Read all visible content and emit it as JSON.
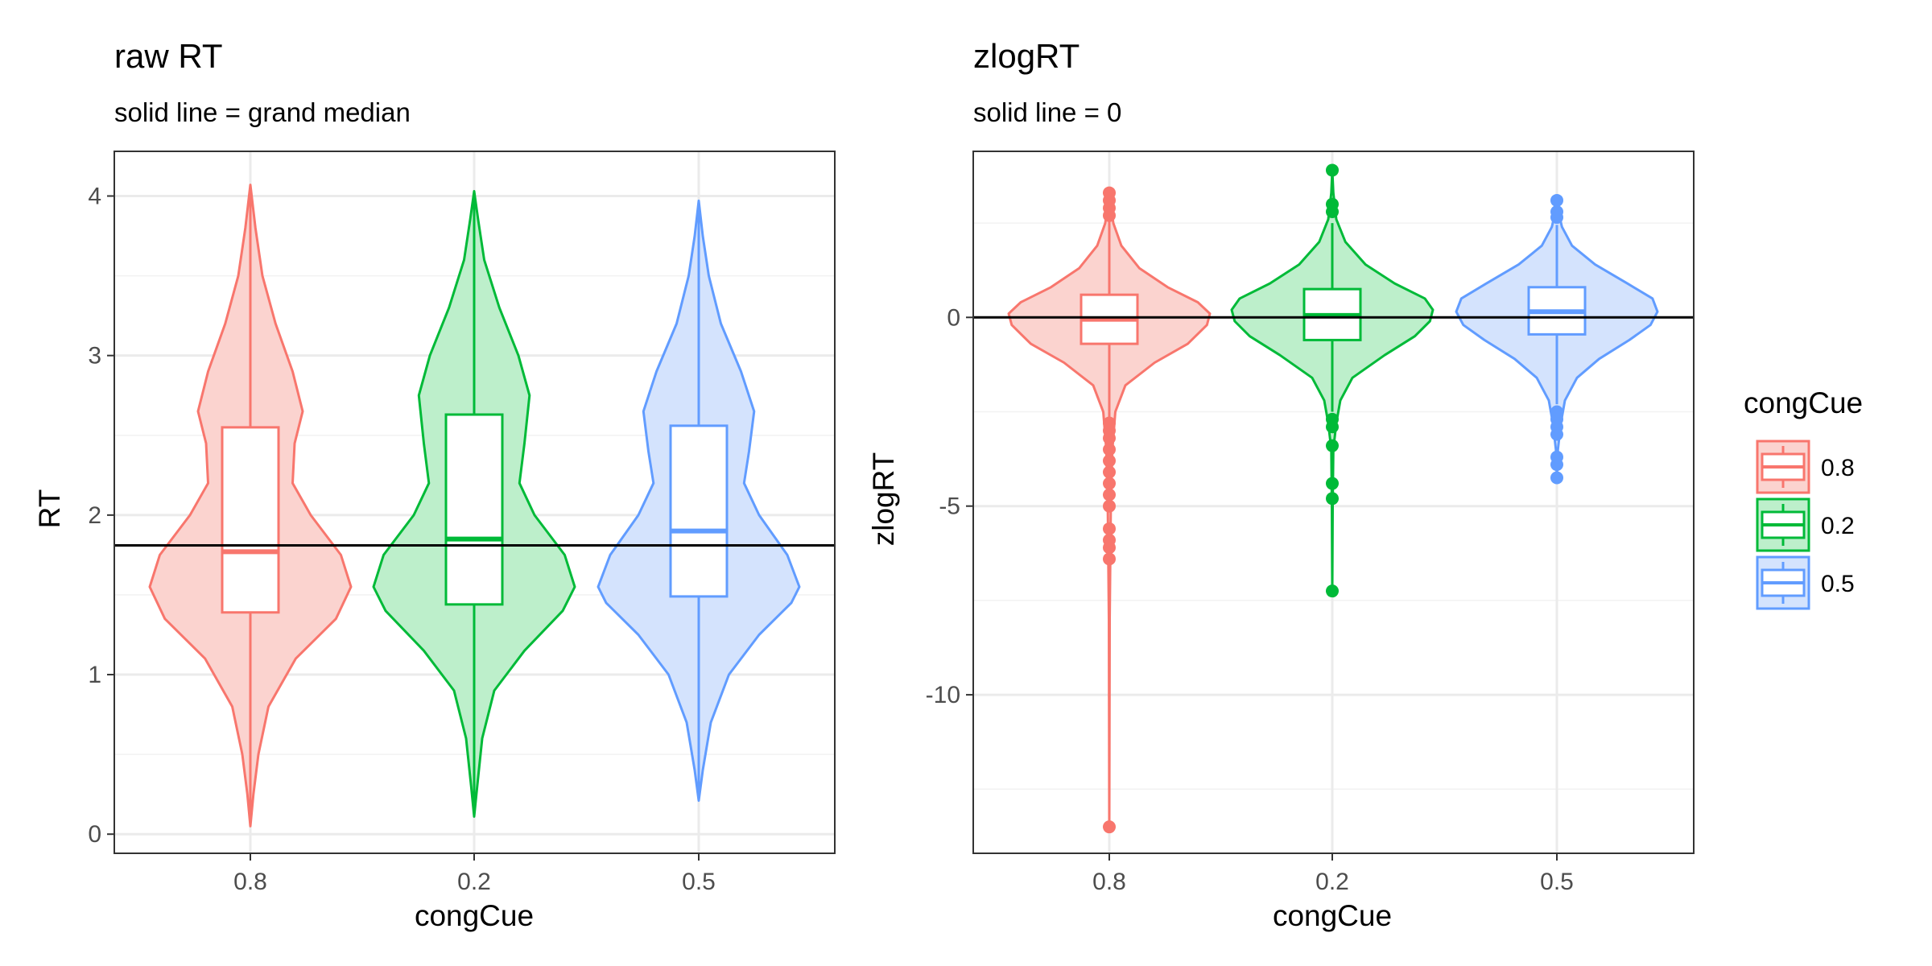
{
  "chart_data": [
    {
      "type": "violin",
      "title": "raw RT",
      "subtitle": "solid line = grand median",
      "xlabel": "congCue",
      "ylabel": "RT",
      "categories": [
        "0.8",
        "0.2",
        "0.5"
      ],
      "ylim": [
        -0.12,
        4.28
      ],
      "yticks": [
        0,
        1,
        2,
        3,
        4
      ],
      "ytick_labels": [
        "0",
        "1",
        "2",
        "3",
        "4"
      ],
      "grid": true,
      "reference_line": 1.81,
      "groups": [
        {
          "name": "0.8",
          "color": "#F8766D",
          "fill": "#FBD3CF",
          "min": 0.05,
          "max": 4.07,
          "q1": 1.39,
          "median": 1.77,
          "q3": 2.55,
          "whisker_low": 0.05,
          "whisker_high": 4.07,
          "outliers": [],
          "density": [
            [
              0.05,
              0.0
            ],
            [
              0.25,
              0.03
            ],
            [
              0.5,
              0.08
            ],
            [
              0.8,
              0.18
            ],
            [
              1.1,
              0.45
            ],
            [
              1.35,
              0.85
            ],
            [
              1.55,
              1.0
            ],
            [
              1.75,
              0.9
            ],
            [
              2.0,
              0.6
            ],
            [
              2.2,
              0.42
            ],
            [
              2.45,
              0.44
            ],
            [
              2.65,
              0.52
            ],
            [
              2.9,
              0.42
            ],
            [
              3.2,
              0.25
            ],
            [
              3.5,
              0.12
            ],
            [
              3.8,
              0.05
            ],
            [
              4.07,
              0.0
            ]
          ]
        },
        {
          "name": "0.2",
          "color": "#00BA38",
          "fill": "#BDEFCB",
          "min": 0.11,
          "max": 4.03,
          "q1": 1.44,
          "median": 1.85,
          "q3": 2.63,
          "whisker_low": 0.11,
          "whisker_high": 4.03,
          "outliers": [],
          "density": [
            [
              0.11,
              0.0
            ],
            [
              0.3,
              0.03
            ],
            [
              0.6,
              0.08
            ],
            [
              0.9,
              0.2
            ],
            [
              1.15,
              0.5
            ],
            [
              1.4,
              0.88
            ],
            [
              1.55,
              1.0
            ],
            [
              1.75,
              0.9
            ],
            [
              2.0,
              0.6
            ],
            [
              2.2,
              0.45
            ],
            [
              2.45,
              0.5
            ],
            [
              2.75,
              0.55
            ],
            [
              3.0,
              0.44
            ],
            [
              3.3,
              0.25
            ],
            [
              3.6,
              0.1
            ],
            [
              3.85,
              0.04
            ],
            [
              4.03,
              0.0
            ]
          ]
        },
        {
          "name": "0.5",
          "color": "#619CFF",
          "fill": "#D4E3FD",
          "min": 0.21,
          "max": 3.97,
          "q1": 1.49,
          "median": 1.9,
          "q3": 2.56,
          "whisker_low": 0.21,
          "whisker_high": 3.97,
          "outliers": [],
          "density": [
            [
              0.21,
              0.0
            ],
            [
              0.4,
              0.04
            ],
            [
              0.7,
              0.12
            ],
            [
              1.0,
              0.3
            ],
            [
              1.25,
              0.6
            ],
            [
              1.45,
              0.92
            ],
            [
              1.55,
              1.0
            ],
            [
              1.75,
              0.88
            ],
            [
              2.0,
              0.6
            ],
            [
              2.2,
              0.45
            ],
            [
              2.4,
              0.5
            ],
            [
              2.65,
              0.55
            ],
            [
              2.9,
              0.42
            ],
            [
              3.2,
              0.22
            ],
            [
              3.5,
              0.1
            ],
            [
              3.75,
              0.04
            ],
            [
              3.97,
              0.0
            ]
          ]
        }
      ]
    },
    {
      "type": "violin",
      "title": "zlogRT",
      "subtitle": "solid line = 0",
      "xlabel": "congCue",
      "ylabel": "zlogRT",
      "categories": [
        "0.8",
        "0.2",
        "0.5"
      ],
      "ylim": [
        -14.2,
        4.4
      ],
      "yticks": [
        -10,
        -5,
        0
      ],
      "ytick_labels": [
        "-10",
        "-5",
        "0"
      ],
      "grid": true,
      "reference_line": 0,
      "groups": [
        {
          "name": "0.8",
          "color": "#F8766D",
          "fill": "#FBD3CF",
          "min": -13.5,
          "max": 3.3,
          "q1": -0.7,
          "median": -0.05,
          "q3": 0.6,
          "whisker_low": -2.65,
          "whisker_high": 2.55,
          "outliers": [
            -13.5,
            -6.4,
            -6.1,
            -5.9,
            -5.6,
            -5.0,
            -4.7,
            -4.4,
            -4.1,
            -3.8,
            -3.5,
            -3.2,
            -3.0,
            -2.8,
            2.7,
            2.9,
            3.1,
            3.3
          ],
          "density": [
            [
              -13.5,
              0.0
            ],
            [
              -8.0,
              0.004
            ],
            [
              -5.0,
              0.015
            ],
            [
              -3.5,
              0.03
            ],
            [
              -2.5,
              0.06
            ],
            [
              -1.8,
              0.16
            ],
            [
              -1.2,
              0.45
            ],
            [
              -0.7,
              0.78
            ],
            [
              -0.2,
              0.97
            ],
            [
              0.1,
              1.0
            ],
            [
              0.4,
              0.88
            ],
            [
              0.8,
              0.58
            ],
            [
              1.3,
              0.3
            ],
            [
              1.9,
              0.12
            ],
            [
              2.5,
              0.04
            ],
            [
              3.0,
              0.015
            ],
            [
              3.3,
              0.0
            ]
          ]
        },
        {
          "name": "0.2",
          "color": "#00BA38",
          "fill": "#BDEFCB",
          "min": -7.25,
          "max": 3.9,
          "q1": -0.6,
          "median": 0.05,
          "q3": 0.75,
          "whisker_low": -2.5,
          "whisker_high": 2.5,
          "outliers": [
            -7.25,
            -4.8,
            -4.4,
            -3.4,
            -2.9,
            -2.7,
            2.8,
            3.0,
            3.9
          ],
          "density": [
            [
              -7.25,
              0.0
            ],
            [
              -5.0,
              0.004
            ],
            [
              -3.5,
              0.01
            ],
            [
              -2.8,
              0.04
            ],
            [
              -2.2,
              0.08
            ],
            [
              -1.6,
              0.2
            ],
            [
              -1.0,
              0.52
            ],
            [
              -0.5,
              0.82
            ],
            [
              -0.1,
              0.97
            ],
            [
              0.2,
              1.0
            ],
            [
              0.5,
              0.92
            ],
            [
              0.9,
              0.62
            ],
            [
              1.4,
              0.33
            ],
            [
              2.0,
              0.13
            ],
            [
              2.6,
              0.04
            ],
            [
              3.3,
              0.01
            ],
            [
              3.9,
              0.0
            ]
          ]
        },
        {
          "name": "0.5",
          "color": "#619CFF",
          "fill": "#D4E3FD",
          "min": -4.25,
          "max": 3.1,
          "q1": -0.45,
          "median": 0.15,
          "q3": 0.8,
          "whisker_low": -2.3,
          "whisker_high": 2.45,
          "outliers": [
            -4.25,
            -3.9,
            -3.7,
            -3.1,
            -2.9,
            -2.7,
            -2.5,
            2.65,
            2.8,
            3.1
          ],
          "density": [
            [
              -4.25,
              0.0
            ],
            [
              -3.5,
              0.01
            ],
            [
              -2.8,
              0.04
            ],
            [
              -2.2,
              0.08
            ],
            [
              -1.6,
              0.2
            ],
            [
              -1.1,
              0.42
            ],
            [
              -0.6,
              0.72
            ],
            [
              -0.2,
              0.93
            ],
            [
              0.15,
              1.0
            ],
            [
              0.5,
              0.95
            ],
            [
              0.9,
              0.7
            ],
            [
              1.4,
              0.38
            ],
            [
              1.9,
              0.15
            ],
            [
              2.4,
              0.05
            ],
            [
              2.8,
              0.015
            ],
            [
              3.1,
              0.0
            ]
          ]
        }
      ]
    }
  ],
  "legend": {
    "title": "congCue",
    "position": "right",
    "items": [
      {
        "label": "0.8",
        "color": "#F8766D",
        "fill": "#FBD3CF"
      },
      {
        "label": "0.2",
        "color": "#00BA38",
        "fill": "#BDEFCB"
      },
      {
        "label": "0.5",
        "color": "#619CFF",
        "fill": "#D4E3FD"
      }
    ]
  }
}
